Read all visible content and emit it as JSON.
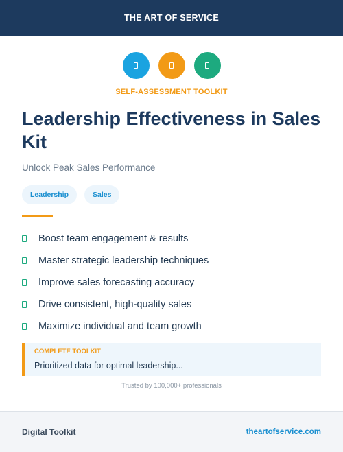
{
  "header": {
    "brand": "THE ART OF SERVICE"
  },
  "icons": [
    {
      "name": "document-icon",
      "color": "#1aa3e0"
    },
    {
      "name": "document-icon",
      "color": "#f29a16"
    },
    {
      "name": "document-icon",
      "color": "#1daa7f"
    }
  ],
  "eyebrow": "SELF-ASSESSMENT TOOLKIT",
  "title": "Leadership Effectiveness in Sales Kit",
  "subtitle": "Unlock Peak Sales Performance",
  "tags": [
    "Leadership",
    "Sales"
  ],
  "features": [
    "Boost team engagement & results",
    "Master strategic leadership techniques",
    "Improve sales forecasting accuracy",
    "Drive consistent, high-quality sales",
    "Maximize individual and team growth"
  ],
  "callout": {
    "label": "COMPLETE TOOLKIT",
    "description": "Prioritized data for optimal leadership..."
  },
  "trust_text": "Trusted by 100,000+ professionals",
  "footer": {
    "left": "Digital Toolkit",
    "right": "theartofservice.com"
  },
  "colors": {
    "navy": "#1d3a5e",
    "orange": "#f29a16",
    "blue": "#1aa3e0",
    "green": "#1daa7f"
  }
}
